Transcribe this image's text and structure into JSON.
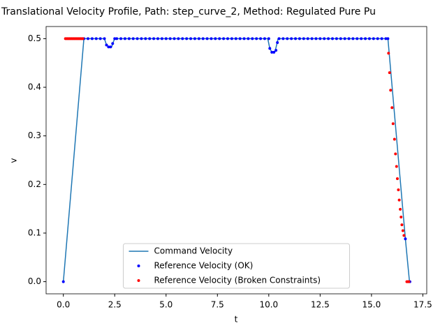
{
  "chart_data": {
    "type": "line-scatter",
    "title": "Translational Velocity Profile, Path: step_curve_2, Method: Regulated Pure Pu",
    "x_label": "t",
    "y_label": "v",
    "xlim": [
      -0.84,
      17.69
    ],
    "ylim": [
      -0.025,
      0.525
    ],
    "xticks": [
      {
        "value": 0,
        "label": "0.0"
      },
      2.5,
      {
        "value": 5,
        "label": "5.0"
      },
      7.5,
      {
        "value": 10,
        "label": "10.0"
      },
      12.5,
      {
        "value": 15,
        "label": "15.0"
      },
      17.5
    ],
    "yticks": [
      {
        "value": 0,
        "label": "0.0"
      },
      0.1,
      0.2,
      0.3,
      0.4,
      0.5
    ],
    "legend": "lower center",
    "series": [
      {
        "name": "Command Velocity",
        "color": "#1f77b4",
        "kind": "line",
        "x": [
          0,
          1,
          2.0,
          2.1,
          2.2,
          2.35,
          2.45,
          2.5,
          9.95,
          10.05,
          10.15,
          10.3,
          10.4,
          10.45,
          15.8,
          16.65,
          16.85
        ],
        "values": [
          0,
          0.5,
          0.5,
          0.487,
          0.483,
          0.483,
          0.495,
          0.5,
          0.5,
          0.48,
          0.472,
          0.473,
          0.49,
          0.5,
          0.5,
          0.088,
          0
        ]
      },
      {
        "name": "Reference Velocity (OK)",
        "color": "#0000ff",
        "kind": "scatter",
        "x": [
          0,
          1.0,
          1.2,
          1.4,
          1.6,
          1.8,
          2.0,
          2.1,
          2.2,
          2.3,
          2.4,
          2.5,
          2.6,
          2.8,
          3.0,
          3.2,
          3.4,
          3.6,
          3.8,
          4.0,
          4.2,
          4.4,
          4.6,
          4.8,
          5.0,
          5.2,
          5.4,
          5.6,
          5.8,
          6.0,
          6.2,
          6.4,
          6.6,
          6.8,
          7.0,
          7.2,
          7.4,
          7.6,
          7.8,
          8.0,
          8.2,
          8.4,
          8.6,
          8.8,
          9.0,
          9.2,
          9.4,
          9.6,
          9.8,
          10.0,
          10.05,
          10.15,
          10.25,
          10.35,
          10.42,
          10.5,
          10.7,
          10.9,
          11.1,
          11.3,
          11.5,
          11.7,
          11.9,
          12.1,
          12.3,
          12.5,
          12.7,
          12.9,
          13.1,
          13.3,
          13.5,
          13.7,
          13.9,
          14.1,
          14.3,
          14.5,
          14.7,
          14.9,
          15.1,
          15.3,
          15.5,
          15.7,
          15.8,
          16.65,
          16.87
        ],
        "values": [
          0,
          0.5,
          0.5,
          0.5,
          0.5,
          0.5,
          0.5,
          0.487,
          0.483,
          0.483,
          0.49,
          0.5,
          0.5,
          0.5,
          0.5,
          0.5,
          0.5,
          0.5,
          0.5,
          0.5,
          0.5,
          0.5,
          0.5,
          0.5,
          0.5,
          0.5,
          0.5,
          0.5,
          0.5,
          0.5,
          0.5,
          0.5,
          0.5,
          0.5,
          0.5,
          0.5,
          0.5,
          0.5,
          0.5,
          0.5,
          0.5,
          0.5,
          0.5,
          0.5,
          0.5,
          0.5,
          0.5,
          0.5,
          0.5,
          0.5,
          0.48,
          0.472,
          0.472,
          0.476,
          0.492,
          0.5,
          0.5,
          0.5,
          0.5,
          0.5,
          0.5,
          0.5,
          0.5,
          0.5,
          0.5,
          0.5,
          0.5,
          0.5,
          0.5,
          0.5,
          0.5,
          0.5,
          0.5,
          0.5,
          0.5,
          0.5,
          0.5,
          0.5,
          0.5,
          0.5,
          0.5,
          0.5,
          0.5,
          0.088,
          0
        ]
      },
      {
        "name": "Reference Velocity (Broken Constraints)",
        "color": "#ff0000",
        "kind": "scatter",
        "x": [
          0.1,
          0.15,
          0.2,
          0.25,
          0.3,
          0.35,
          0.4,
          0.45,
          0.5,
          0.55,
          0.6,
          0.65,
          0.7,
          0.75,
          0.8,
          0.85,
          0.9,
          0.95,
          15.83,
          15.88,
          15.93,
          16.0,
          16.05,
          16.12,
          16.17,
          16.22,
          16.26,
          16.31,
          16.35,
          16.4,
          16.44,
          16.48,
          16.53,
          16.58,
          16.72,
          16.77,
          16.82
        ],
        "values": [
          0.5,
          0.5,
          0.5,
          0.5,
          0.5,
          0.5,
          0.5,
          0.5,
          0.5,
          0.5,
          0.5,
          0.5,
          0.5,
          0.5,
          0.5,
          0.5,
          0.5,
          0.5,
          0.47,
          0.43,
          0.394,
          0.358,
          0.325,
          0.293,
          0.263,
          0.237,
          0.212,
          0.189,
          0.168,
          0.149,
          0.133,
          0.117,
          0.105,
          0.095,
          0,
          0,
          0
        ]
      }
    ]
  }
}
